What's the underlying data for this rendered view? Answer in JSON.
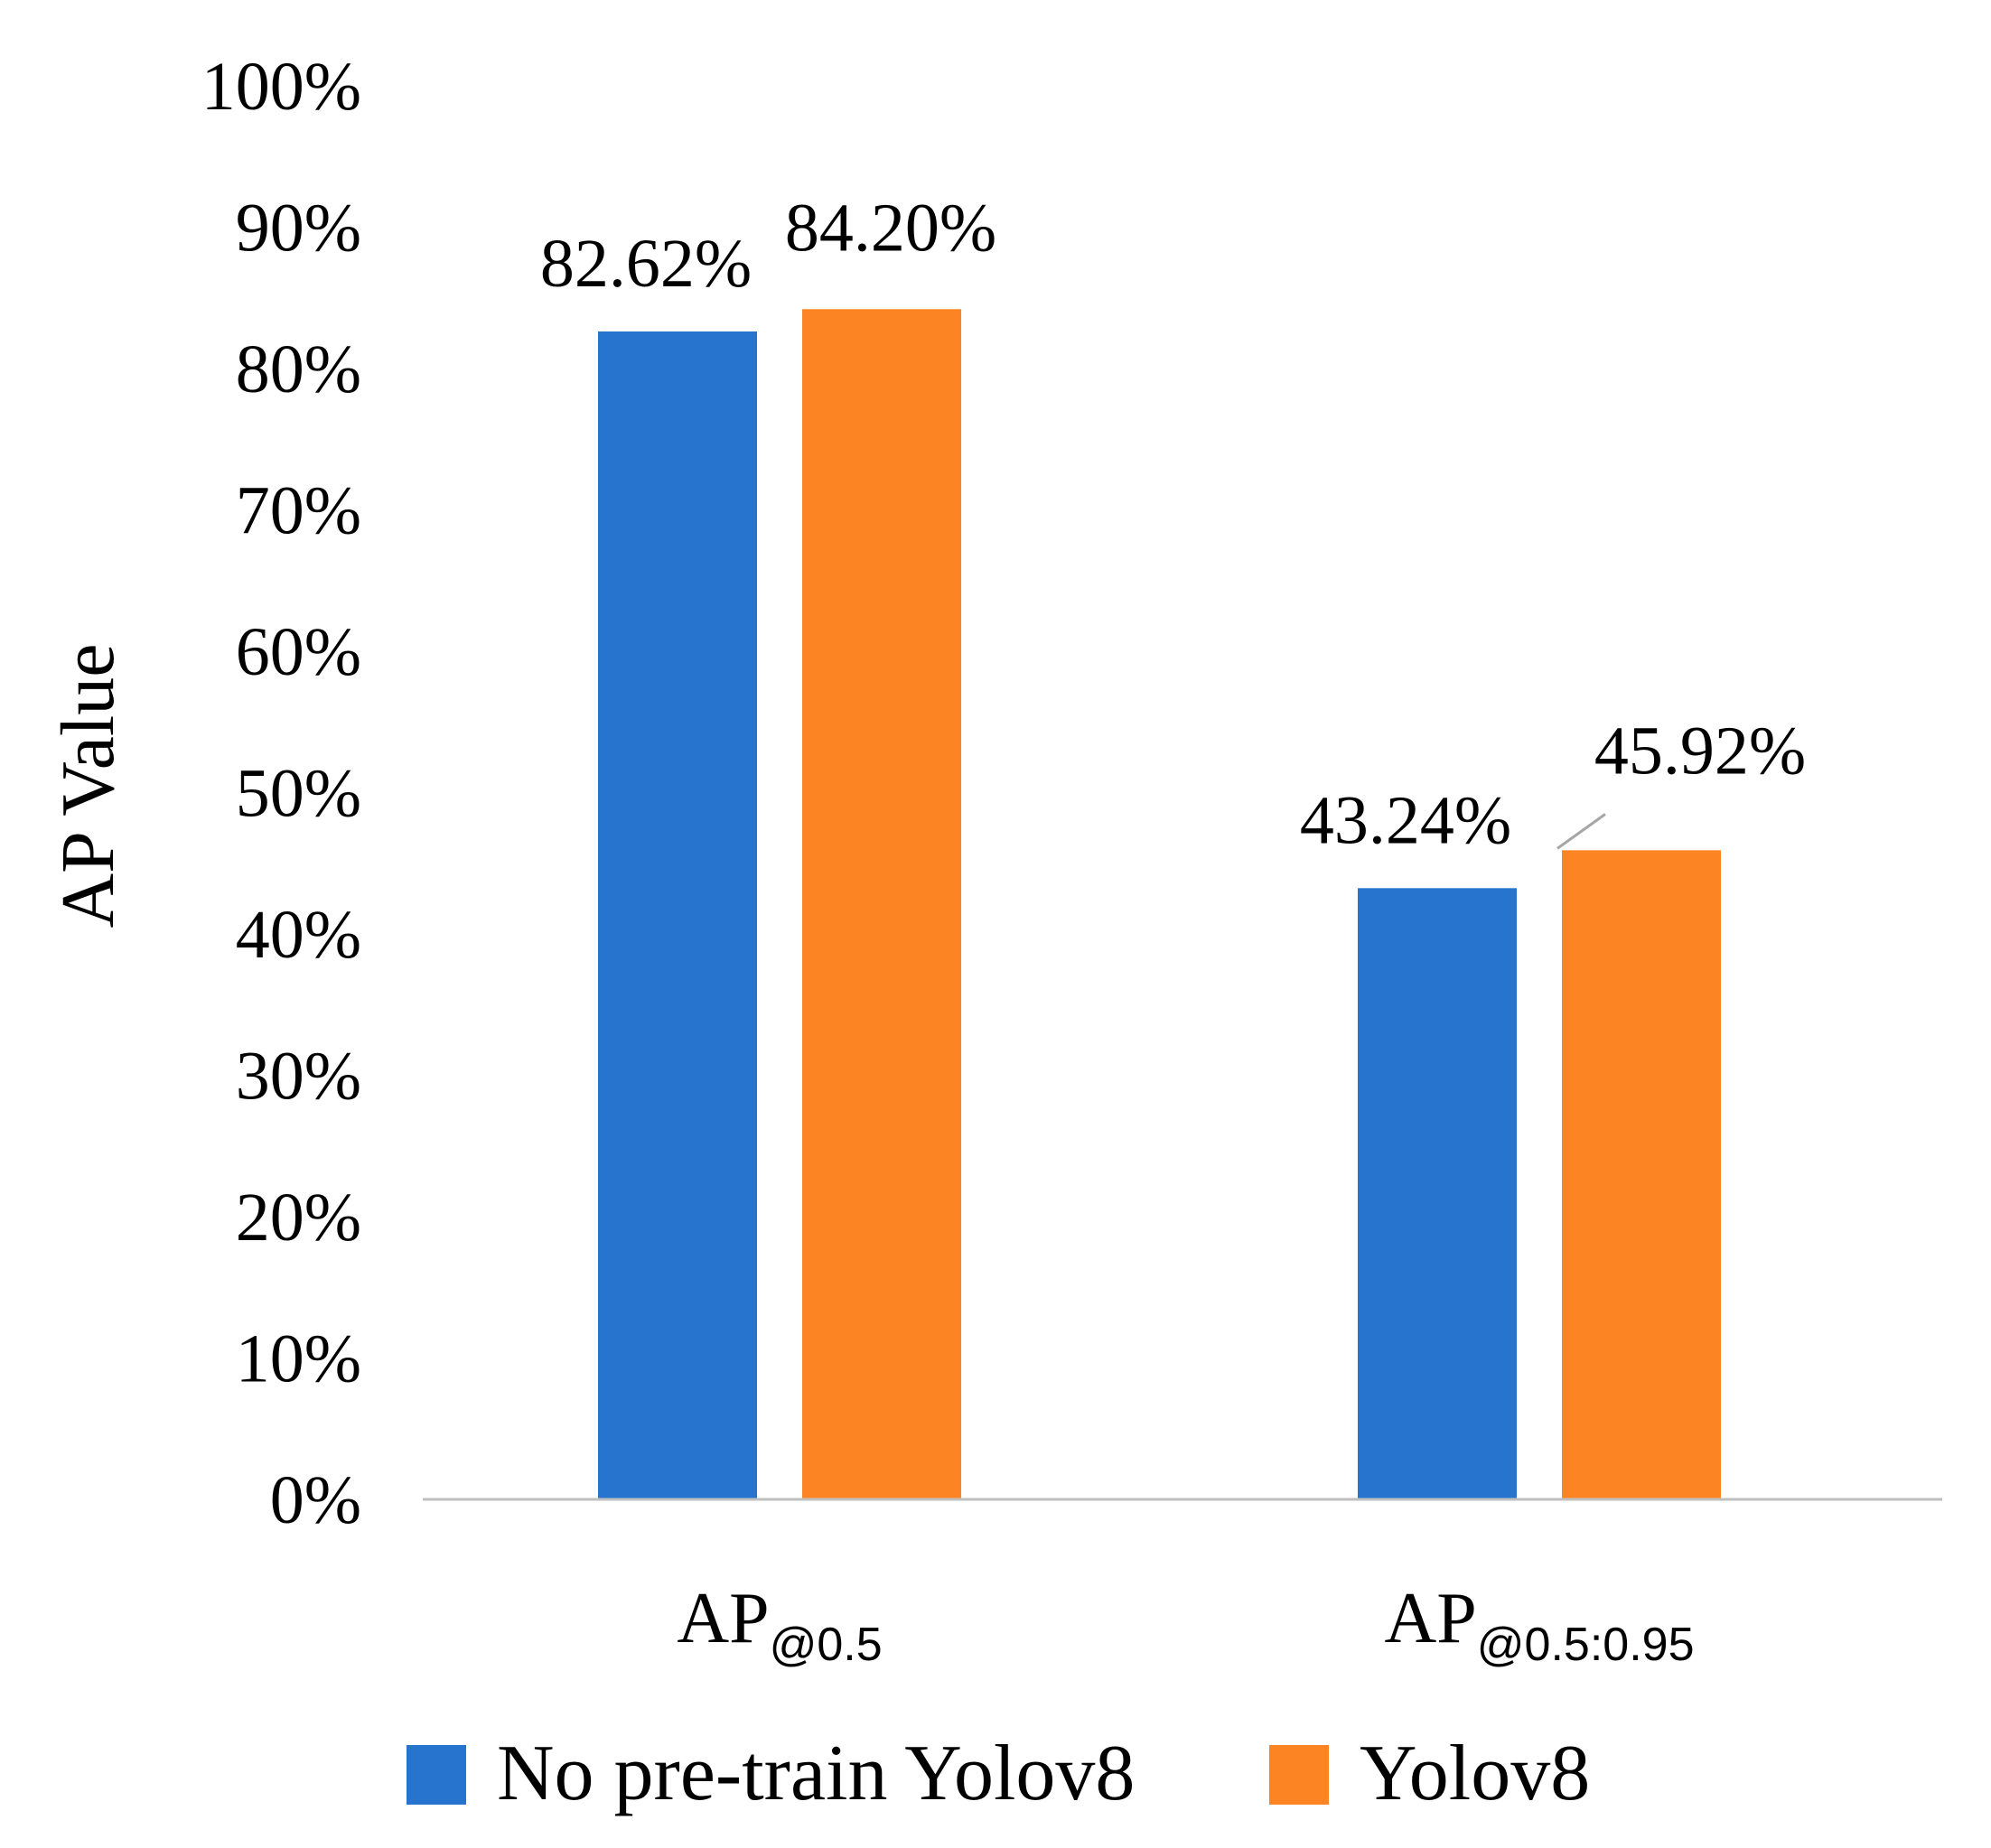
{
  "chart_data": {
    "type": "bar",
    "ylabel": "AP Value",
    "ylim": [
      0,
      100
    ],
    "yticks": [
      0,
      10,
      20,
      30,
      40,
      50,
      60,
      70,
      80,
      90,
      100
    ],
    "ytick_labels": [
      "0%",
      "10%",
      "20%",
      "30%",
      "40%",
      "50%",
      "60%",
      "70%",
      "80%",
      "90%",
      "100%"
    ],
    "categories": [
      {
        "main": "AP",
        "sub": "@0.5"
      },
      {
        "main": "AP",
        "sub": "@0.5:0.95"
      }
    ],
    "series": [
      {
        "name": "No pre-train Yolov8",
        "color": "#2674CE",
        "values": [
          82.62,
          43.24
        ],
        "labels": [
          "82.62%",
          "43.24%"
        ]
      },
      {
        "name": "Yolov8",
        "color": "#FD8423",
        "values": [
          84.2,
          45.92
        ],
        "labels": [
          "84.20%",
          "45.92%"
        ]
      }
    ],
    "grid": false,
    "legend_position": "bottom"
  }
}
